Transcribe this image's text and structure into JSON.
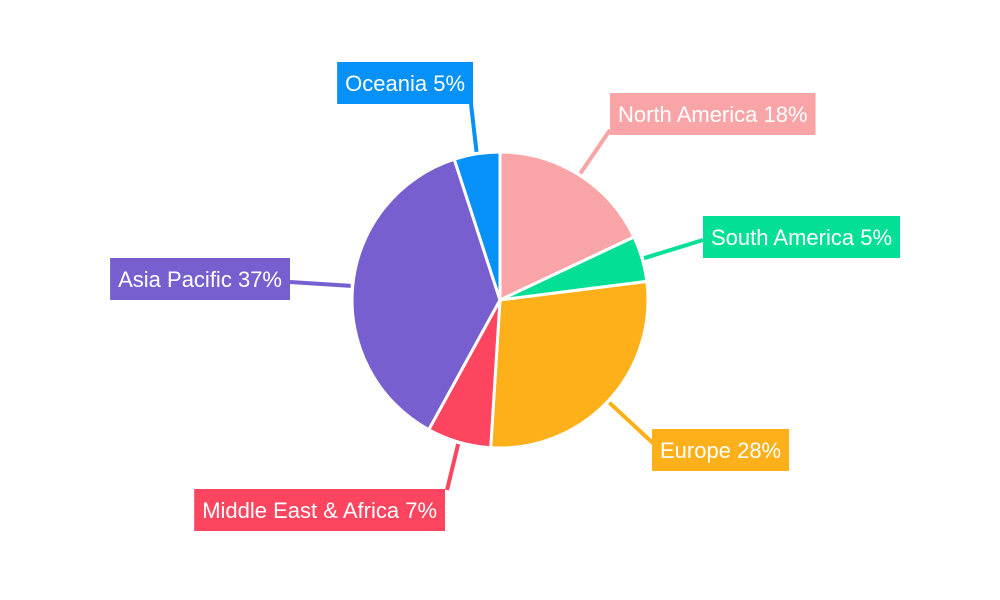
{
  "chart_data": {
    "type": "pie",
    "categories": [
      "North America",
      "South America",
      "Europe",
      "Middle East & Africa",
      "Asia Pacific",
      "Oceania"
    ],
    "values": [
      18,
      5,
      28,
      7,
      37,
      5
    ],
    "value_labels": [
      "18%",
      "5%",
      "28%",
      "7%",
      "37%",
      "5%"
    ],
    "colors": [
      "#f9a5a8",
      "#03e095",
      "#fdb01a",
      "#fd4560",
      "#785fcf",
      "#0591f7"
    ]
  }
}
